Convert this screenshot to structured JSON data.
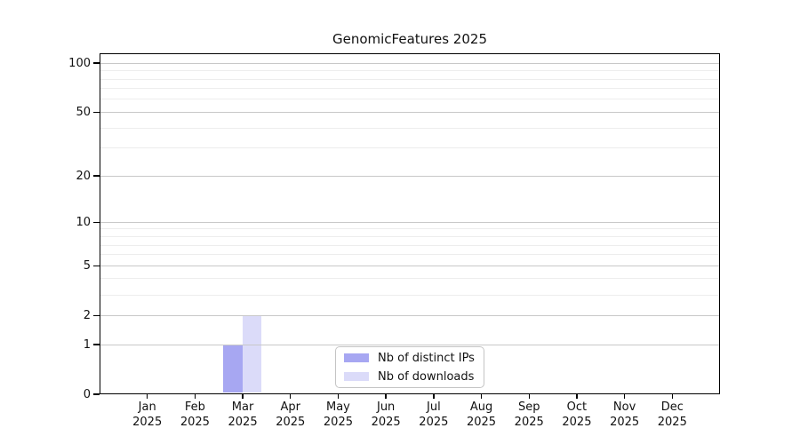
{
  "title": "GenomicFeatures 2025",
  "chart_data": {
    "type": "bar",
    "title": "GenomicFeatures 2025",
    "categories": [
      "Jan",
      "Feb",
      "Mar",
      "Apr",
      "May",
      "Jun",
      "Jul",
      "Aug",
      "Sep",
      "Oct",
      "Nov",
      "Dec"
    ],
    "category_year": "2025",
    "series": [
      {
        "name": "Nb of distinct IPs",
        "color": "#a7a7f2",
        "values": [
          0,
          0,
          1,
          0,
          0,
          0,
          0,
          0,
          0,
          0,
          0,
          0
        ]
      },
      {
        "name": "Nb of downloads",
        "color": "#dbdbf9",
        "values": [
          0,
          0,
          2,
          0,
          0,
          0,
          0,
          0,
          0,
          0,
          0,
          0
        ]
      }
    ],
    "xlabel": "",
    "ylabel": "",
    "y_scale": "log1p",
    "y_major_ticks": [
      0,
      1,
      2,
      5,
      10,
      20,
      50,
      100
    ],
    "y_minor_gridlines": [
      3,
      4,
      6,
      7,
      8,
      9,
      30,
      40,
      60,
      70,
      80,
      90
    ],
    "ylim": [
      0,
      115
    ],
    "grid": "horizontal",
    "legend_position": "lower center"
  },
  "legend": {
    "entries": [
      {
        "label": "Nb of distinct IPs"
      },
      {
        "label": "Nb of downloads"
      }
    ]
  }
}
